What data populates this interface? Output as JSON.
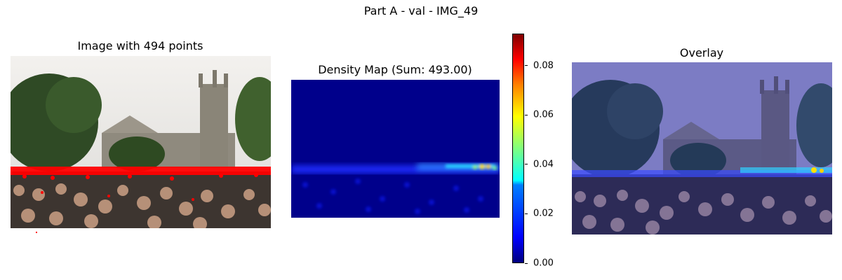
{
  "figure": {
    "suptitle": "Part A - val - IMG_49"
  },
  "panels": {
    "image": {
      "title": "Image with 494 points"
    },
    "density": {
      "title": "Density Map (Sum: 493.00)"
    },
    "overlay": {
      "title": "Overlay"
    }
  },
  "chart_data": {
    "type": "heatmap",
    "title": "Density Map (Sum: 493.00)",
    "point_count": 494,
    "density_sum": 493.0,
    "colormap": "jet",
    "colorbar": {
      "range": [
        0.0,
        0.093
      ],
      "ticks": [
        "0.00",
        "0.02",
        "0.04",
        "0.06",
        "0.08"
      ],
      "tick_values": [
        0.0,
        0.02,
        0.04,
        0.06,
        0.08
      ]
    }
  },
  "colors": {
    "crowd_band": "#3a4cff",
    "hotspot": "#ffe000",
    "background": "#00008b",
    "overlay_tint": "#6f6fb8",
    "annotation_points": "#ff0000"
  }
}
